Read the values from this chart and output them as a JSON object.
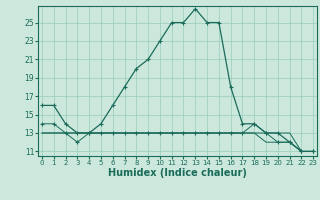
{
  "bg_color": "#cce8dc",
  "grid_color": "#99ccbb",
  "line_color": "#1a6b5a",
  "marker_color": "#1a6b5a",
  "xlabel": "Humidex (Indice chaleur)",
  "xlabel_fontsize": 7,
  "ylabel_tick_labels": [
    "11",
    "13",
    "15",
    "17",
    "19",
    "21",
    "23",
    "25"
  ],
  "ytick_values": [
    11,
    13,
    15,
    17,
    19,
    21,
    23,
    25
  ],
  "xtick_values": [
    0,
    1,
    2,
    3,
    4,
    5,
    6,
    7,
    8,
    9,
    10,
    11,
    12,
    13,
    14,
    15,
    16,
    17,
    18,
    19,
    20,
    21,
    22,
    23
  ],
  "xlim": [
    -0.3,
    23.3
  ],
  "ylim": [
    10.5,
    26.8
  ],
  "series": [
    {
      "x": [
        0,
        1,
        2,
        3,
        4,
        5,
        6,
        7,
        8,
        9,
        10,
        11,
        12,
        13,
        14,
        15,
        16,
        17,
        18,
        19,
        20,
        21,
        22,
        23
      ],
      "y": [
        16,
        16,
        14,
        13,
        13,
        14,
        16,
        18,
        20,
        21,
        23,
        25,
        25,
        26.5,
        25,
        25,
        18,
        14,
        14,
        13,
        13,
        12,
        11,
        11
      ],
      "has_markers": true,
      "lw": 0.9
    },
    {
      "x": [
        0,
        1,
        2,
        3,
        4,
        5,
        6,
        7,
        8,
        9,
        10,
        11,
        12,
        13,
        14,
        15,
        16,
        17,
        18,
        19,
        20,
        21,
        22,
        23
      ],
      "y": [
        13,
        13,
        13,
        13,
        13,
        13,
        13,
        13,
        13,
        13,
        13,
        13,
        13,
        13,
        13,
        13,
        13,
        13,
        13,
        13,
        13,
        13,
        11,
        11
      ],
      "has_markers": false,
      "lw": 0.7
    },
    {
      "x": [
        0,
        1,
        2,
        3,
        4,
        5,
        6,
        7,
        8,
        9,
        10,
        11,
        12,
        13,
        14,
        15,
        16,
        17,
        18,
        19,
        20,
        21,
        22,
        23
      ],
      "y": [
        13,
        13,
        13,
        13,
        13,
        13,
        13,
        13,
        13,
        13,
        13,
        13,
        13,
        13,
        13,
        13,
        13,
        13,
        13,
        12,
        12,
        12,
        11,
        11
      ],
      "has_markers": false,
      "lw": 0.7
    },
    {
      "x": [
        0,
        1,
        2,
        3,
        4,
        5,
        6,
        7,
        8,
        9,
        10,
        11,
        12,
        13,
        14,
        15,
        16,
        17,
        18,
        19,
        20,
        21,
        22,
        23
      ],
      "y": [
        14,
        14,
        13,
        12,
        13,
        13,
        13,
        13,
        13,
        13,
        13,
        13,
        13,
        13,
        13,
        13,
        13,
        13,
        14,
        13,
        12,
        12,
        11,
        11
      ],
      "has_markers": true,
      "lw": 0.7
    }
  ]
}
